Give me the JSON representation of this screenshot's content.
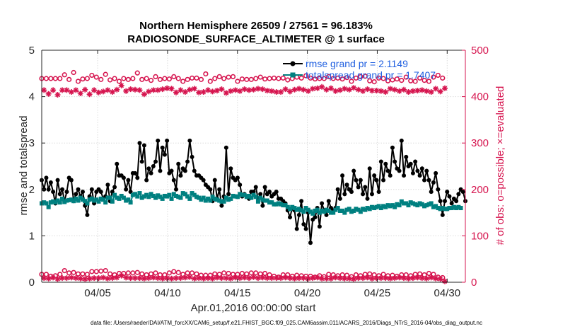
{
  "chart_data": {
    "type": "line",
    "title_line1": "Northern Hemisphere 26509 / 27561 = 96.183%",
    "title_line2": "RADIOSONDE_SURFACE_ALTIMETER @ 1 surface",
    "xlabel": "Apr.01,2016 00:00:00 start",
    "ylabel_left": "rmse and totalspread",
    "ylabel_right": "# of obs: o=possible; ×=evaluated",
    "footer": "data file: /Users/raeder/DAI/ATM_forcXX/CAM6_setup/f.e21.FHIST_BGC.f09_025.CAM6assim.011/ACARS_2016/Diags_NTrS_2016-04/obs_diag_output.nc",
    "xlim": [
      1,
      31.3
    ],
    "ylim_left": [
      0,
      5
    ],
    "ylim_right": [
      0,
      500
    ],
    "x_ticks": [
      5,
      10,
      15,
      20,
      25,
      30
    ],
    "x_tick_labels": [
      "04/05",
      "04/10",
      "04/15",
      "04/20",
      "04/25",
      "04/30"
    ],
    "y_left_ticks": [
      "0",
      "1",
      "2",
      "3",
      "4",
      "5"
    ],
    "y_right_ticks": [
      "0",
      "100",
      "200",
      "300",
      "400",
      "500"
    ],
    "colors": {
      "rmse": "#000000",
      "spread": "#008080",
      "obs": "#d6154f",
      "legend_text": "#1f5fe0"
    },
    "legend": [
      {
        "name": "rmse grand pr = 2.1149"
      },
      {
        "name": "totalspread grand pr = 1.7407"
      }
    ],
    "series": [
      {
        "name": "rmse",
        "axis": "left",
        "values": [
          2.2,
          2.0,
          2.25,
          2.0,
          2.15,
          1.95,
          1.7,
          2.2,
          1.9,
          2.0,
          1.75,
          1.95,
          2.25,
          2.2,
          1.75,
          1.9,
          2.0,
          1.85,
          1.95,
          1.65,
          1.45,
          1.85,
          2.0,
          1.7,
          1.95,
          2.0,
          1.95,
          1.8,
          1.85,
          2.1,
          1.75,
          1.95,
          2.05,
          2.55,
          2.3,
          2.3,
          2.25,
          2.0,
          2.2,
          1.95,
          2.35,
          2.35,
          2.25,
          3.0,
          2.6,
          2.95,
          2.2,
          2.45,
          2.35,
          2.5,
          2.6,
          3.05,
          2.4,
          2.9,
          2.75,
          3.05,
          2.35,
          2.4,
          2.2,
          2.0,
          2.55,
          2.3,
          2.45,
          2.4,
          2.6,
          3.05,
          2.7,
          2.4,
          2.3,
          2.3,
          2.25,
          2.2,
          2.1,
          2.05,
          2.0,
          1.75,
          2.2,
          1.8,
          2.0,
          1.65,
          1.85,
          2.9,
          1.9,
          2.45,
          2.25,
          2.2,
          2.25,
          2.1,
          1.85,
          1.9,
          1.85,
          1.8,
          1.95,
          1.95,
          2.05,
          1.8,
          1.9,
          1.65,
          2.05,
          1.9,
          1.95,
          1.85,
          1.9,
          1.95,
          1.8,
          1.8,
          1.75,
          1.7,
          1.55,
          1.4,
          1.6,
          1.55,
          1.15,
          1.45,
          1.75,
          1.25,
          1.15,
          1.5,
          0.85,
          1.35,
          1.4,
          1.6,
          1.2,
          1.7,
          1.55,
          1.45,
          1.75,
          1.6,
          1.55,
          1.6,
          2.0,
          1.8,
          2.3,
          1.9,
          2.1,
          2.0,
          1.95,
          2.4,
          2.2,
          2.05,
          2.2,
          1.9,
          2.05,
          1.8,
          2.45,
          1.9,
          2.3,
          2.2,
          1.95,
          2.6,
          2.2,
          2.55,
          2.4,
          2.3,
          2.9,
          2.6,
          2.45,
          2.4,
          3.05,
          2.3,
          2.7,
          2.5,
          2.55,
          2.35,
          2.6,
          2.4,
          2.3,
          2.45,
          2.2,
          2.4,
          2.2,
          1.95,
          2.15,
          2.35,
          2.0,
          1.75,
          1.45,
          1.75,
          1.95,
          1.85,
          1.7,
          1.8,
          1.75,
          1.9,
          2.0,
          1.95,
          1.75
        ]
      },
      {
        "name": "totalspread",
        "axis": "left",
        "values": [
          1.7,
          1.72,
          1.7,
          1.62,
          1.72,
          1.74,
          1.72,
          1.76,
          1.72,
          1.8,
          1.73,
          1.76,
          1.77,
          1.78,
          1.75,
          1.8,
          1.76,
          1.82,
          1.78,
          1.75,
          1.7,
          1.78,
          1.8,
          1.76,
          1.78,
          1.74,
          1.8,
          1.78,
          1.72,
          1.82,
          1.82,
          1.74,
          1.88,
          1.82,
          1.8,
          1.86,
          1.82,
          1.76,
          1.78,
          1.72,
          1.88,
          1.9,
          1.85,
          1.92,
          1.82,
          1.85,
          1.88,
          1.84,
          1.9,
          1.86,
          1.82,
          1.87,
          1.84,
          1.8,
          1.86,
          1.85,
          1.88,
          1.8,
          1.9,
          1.86,
          1.84,
          1.82,
          1.92,
          1.9,
          1.85,
          1.8,
          1.92,
          1.88,
          1.84,
          1.82,
          1.78,
          1.82,
          1.76,
          1.8,
          1.76,
          1.84,
          1.8,
          1.78,
          1.76,
          1.74,
          1.74,
          1.82,
          1.78,
          1.8,
          1.86,
          1.85,
          1.84,
          1.9,
          1.88,
          1.88,
          1.84,
          1.86,
          1.82,
          1.88,
          1.84,
          1.74,
          1.82,
          1.78,
          1.76,
          1.76,
          1.72,
          1.72,
          1.68,
          1.68,
          1.7,
          1.68,
          1.66,
          1.66,
          1.62,
          1.58,
          1.62,
          1.6,
          1.56,
          1.58,
          1.55,
          1.52,
          1.6,
          1.56,
          1.52,
          1.48,
          1.54,
          1.56,
          1.5,
          1.54,
          1.52,
          1.56,
          1.54,
          1.5,
          1.5,
          1.56,
          1.6,
          1.54,
          1.54,
          1.5,
          1.56,
          1.58,
          1.52,
          1.54,
          1.58,
          1.56,
          1.52,
          1.58,
          1.56,
          1.6,
          1.58,
          1.62,
          1.6,
          1.62,
          1.64,
          1.6,
          1.64,
          1.62,
          1.66,
          1.64,
          1.66,
          1.62,
          1.68,
          1.66,
          1.74,
          1.7,
          1.7,
          1.66,
          1.72,
          1.7,
          1.68,
          1.66,
          1.7,
          1.68,
          1.64,
          1.66,
          1.68,
          1.7,
          1.62,
          1.64,
          1.6,
          1.58,
          1.6,
          1.58,
          1.58,
          1.6,
          1.6,
          1.62,
          1.6,
          1.62,
          1.6
        ]
      },
      {
        "name": "obs possible",
        "axis": "right",
        "values": [
          439,
          429,
          439,
          421,
          439,
          429,
          439,
          419,
          439,
          429,
          447,
          429,
          437,
          425,
          452,
          429,
          433,
          422,
          438,
          430,
          439,
          420,
          446,
          429,
          442,
          424,
          437,
          426,
          448,
          429,
          436,
          425,
          439,
          430,
          433,
          439,
          439,
          427,
          437,
          431,
          439,
          430,
          451,
          429,
          437,
          420,
          439,
          426,
          435,
          429,
          443,
          429,
          437,
          431,
          439,
          433,
          438,
          432,
          443,
          424,
          439,
          429,
          433,
          425,
          437,
          430,
          440,
          432,
          440,
          424,
          437,
          425,
          449,
          429,
          433,
          426,
          439,
          428,
          443,
          431,
          439,
          423,
          442,
          427,
          443,
          429,
          433,
          427,
          438,
          431,
          437,
          429,
          437,
          430,
          439,
          432,
          442,
          431,
          438,
          428,
          439,
          427,
          440,
          425,
          439,
          425,
          440,
          431,
          436,
          426,
          439,
          430,
          442,
          432,
          440,
          430,
          445,
          427,
          440,
          432,
          438,
          433,
          439,
          436,
          439,
          430,
          443,
          433,
          439,
          427,
          440,
          429,
          438,
          432,
          441,
          430,
          433,
          434,
          440,
          430,
          443,
          427,
          444,
          431,
          434,
          428,
          432,
          428,
          440,
          427,
          439,
          425,
          434,
          432,
          436,
          430,
          438,
          427,
          435,
          430,
          442,
          425,
          434,
          427,
          433,
          428,
          440,
          429,
          435,
          427,
          433,
          425,
          442,
          432,
          446,
          426,
          440,
          433
        ]
      },
      {
        "name": "obs evaluated",
        "axis": "right",
        "values": [
          424,
          414,
          424,
          406,
          424,
          414,
          424,
          404,
          424,
          414,
          432,
          414,
          422,
          410,
          437,
          414,
          418,
          407,
          423,
          415,
          424,
          405,
          431,
          414,
          427,
          409,
          422,
          411,
          433,
          414,
          421,
          410,
          424,
          415,
          418,
          424,
          424,
          412,
          422,
          416,
          424,
          415,
          436,
          414,
          422,
          405,
          424,
          411,
          420,
          414,
          428,
          414,
          422,
          416,
          424,
          418,
          423,
          417,
          428,
          409,
          424,
          414,
          418,
          410,
          422,
          415,
          425,
          417,
          425,
          409,
          422,
          410,
          434,
          414,
          418,
          411,
          424,
          413,
          428,
          416,
          424,
          408,
          427,
          412,
          428,
          414,
          418,
          412,
          423,
          416,
          422,
          414,
          422,
          415,
          424,
          417,
          427,
          416,
          423,
          413,
          424,
          412,
          425,
          410,
          424,
          410,
          425,
          416,
          421,
          411,
          424,
          415,
          427,
          417,
          425,
          415,
          430,
          412,
          425,
          417,
          423,
          418,
          424,
          421,
          424,
          415,
          428,
          418,
          424,
          412,
          425,
          414,
          423,
          417,
          426,
          415,
          418,
          419,
          425,
          415,
          428,
          412,
          429,
          416,
          419,
          413,
          417,
          413,
          425,
          412,
          424,
          410,
          419,
          417,
          421,
          415,
          423,
          412,
          420,
          415,
          427,
          410,
          419,
          412,
          418,
          413,
          425,
          414,
          420,
          412,
          418,
          410,
          427,
          417,
          431,
          411,
          425,
          418
        ]
      },
      {
        "name": "obs possible (00Z)",
        "axis": "right",
        "values": [
          17,
          9,
          17,
          8,
          13,
          10,
          14,
          7,
          17,
          9,
          25,
          9,
          20,
          10,
          21,
          9,
          18,
          8,
          18,
          7,
          17,
          8,
          23,
          9,
          23,
          9,
          24,
          10,
          25,
          8,
          18,
          9,
          16,
          10,
          19,
          14,
          19,
          10,
          20,
          9,
          20,
          9,
          21,
          9,
          18,
          8,
          16,
          9,
          18,
          10,
          20,
          9,
          16,
          8,
          16,
          9,
          20,
          8,
          23,
          9,
          21,
          9,
          17,
          10,
          20,
          11,
          20,
          8,
          18,
          9,
          15,
          8,
          15,
          9,
          15,
          8,
          18,
          10,
          17,
          9,
          20,
          9,
          19,
          8,
          17,
          10,
          17,
          9,
          19,
          10,
          18,
          9,
          20,
          11,
          20,
          9,
          18,
          10,
          19,
          9,
          16,
          9,
          13,
          9,
          11,
          9,
          16,
          10,
          16,
          9,
          13,
          8,
          15,
          9,
          14,
          9,
          13,
          8,
          13,
          9,
          11,
          10,
          14,
          8,
          12,
          8,
          17,
          8,
          16,
          10,
          14,
          9,
          16,
          8,
          15,
          8,
          12,
          7,
          16,
          9,
          14,
          9,
          17,
          10,
          18,
          8,
          16,
          9,
          14,
          9,
          17,
          9,
          14,
          8,
          15,
          9,
          13,
          10,
          16,
          9,
          16,
          8,
          14,
          9,
          17,
          10,
          18,
          9,
          16,
          8,
          19,
          10,
          17,
          8,
          11,
          7,
          10,
          2
        ]
      }
    ]
  }
}
